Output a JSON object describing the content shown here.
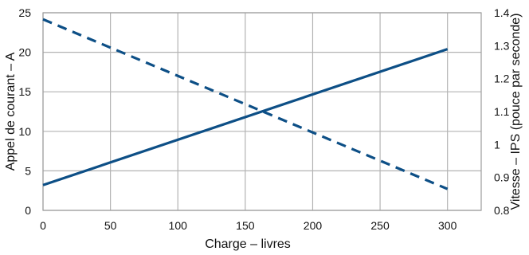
{
  "chart_data": {
    "type": "line",
    "title": "",
    "xlabel": "Charge – livres",
    "ylabel": "Appel de courant – A",
    "y2label": "Vitesse – IPS (pouce par seconde)",
    "xlim": [
      0,
      325
    ],
    "ylim": [
      0,
      25
    ],
    "y2lim": [
      0.8,
      1.4
    ],
    "x_ticks": [
      0,
      50,
      100,
      150,
      200,
      250,
      300
    ],
    "x_tick_labels": [
      "0",
      "50",
      "100",
      "150",
      "200",
      "250",
      "300"
    ],
    "y_ticks": [
      0,
      5,
      10,
      15,
      20,
      25
    ],
    "y_tick_labels": [
      "0",
      "5",
      "10",
      "15",
      "20",
      "25"
    ],
    "y2_ticks": [
      0.8,
      0.9,
      1.0,
      1.1,
      1.2,
      1.3,
      1.4
    ],
    "y2_tick_labels": [
      "0.8",
      "0.9",
      "1",
      "1.1",
      "1.2",
      "1.3",
      "1.4"
    ],
    "grid": true,
    "legend": "none",
    "series": [
      {
        "axis": "left",
        "style": "solid",
        "color": "#0d4f86",
        "x": [
          0,
          300
        ],
        "y": [
          3.2,
          20.4
        ]
      },
      {
        "axis": "right",
        "style": "dashed",
        "color": "#0d4f86",
        "x": [
          0,
          300
        ],
        "y": [
          1.38,
          0.865
        ]
      }
    ]
  }
}
